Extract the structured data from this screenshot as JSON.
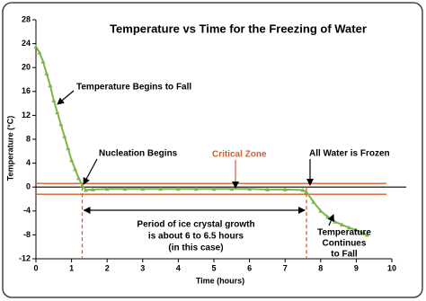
{
  "chart_data": {
    "type": "line",
    "title": "Temperature vs Time for the Freezing of Water",
    "x_label": "Time  (hours)",
    "y_label": "Temperature  (°C)",
    "xlim": [
      0,
      10
    ],
    "xticks": [
      0,
      1,
      2,
      3,
      4,
      5,
      6,
      7,
      8,
      9,
      10
    ],
    "ylim": [
      -12,
      28
    ],
    "yticks": [
      -12,
      -8,
      -4,
      0,
      4,
      8,
      12,
      16,
      20,
      24,
      28
    ],
    "series": [
      {
        "color": "#7ab648",
        "x": [
          0,
          0.1,
          0.2,
          0.3,
          0.4,
          0.5,
          0.6,
          0.7,
          0.8,
          0.9,
          1.0,
          1.1,
          1.2,
          1.3,
          1.4,
          1.6,
          2,
          2.5,
          3,
          3.5,
          4,
          4.5,
          5,
          5.5,
          6,
          6.5,
          7,
          7.5,
          7.6,
          7.8,
          8.0,
          8.2,
          8.4,
          8.6,
          8.8,
          9.0,
          9.2,
          9.3
        ],
        "values": [
          23.5,
          22.5,
          21,
          19,
          17,
          14.5,
          12.5,
          10.5,
          8.5,
          6.5,
          4.5,
          3,
          1.5,
          0.3,
          -0.5,
          -0.4,
          -0.3,
          -0.3,
          -0.3,
          -0.3,
          -0.3,
          -0.3,
          -0.3,
          -0.3,
          -0.3,
          -0.4,
          -0.4,
          -0.5,
          -0.8,
          -2.5,
          -4,
          -5,
          -5.8,
          -6.3,
          -6.8,
          -7.2,
          -7.7,
          -8
        ]
      }
    ],
    "critical_zone": [
      0.6,
      -1.2
    ],
    "phase_times": [
      1.3,
      7.6
    ],
    "annotations": [
      [
        "Temperature Begins to Fall"
      ],
      [
        "Nucleation Begins"
      ],
      [
        "Critical Zone"
      ],
      [
        "All Water is Frozen"
      ],
      [
        "Period of ice crystal growth",
        "is about 6 to 6.5  hours",
        "(in this case)"
      ],
      [
        "Temperature",
        "Continues",
        "to Fall"
      ]
    ]
  }
}
